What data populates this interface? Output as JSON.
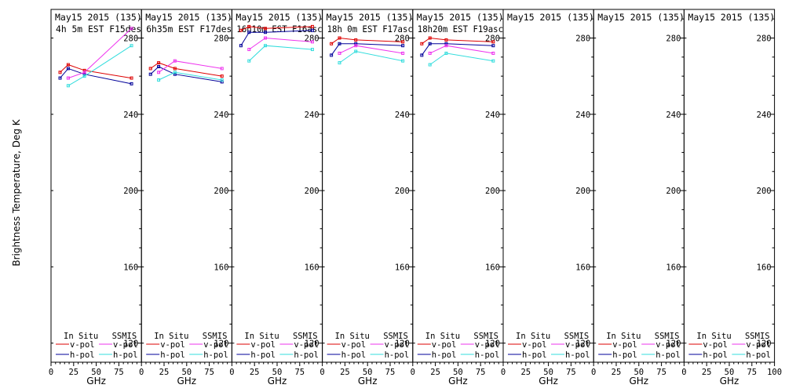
{
  "figure": {
    "ylabel": "Brightness Temperature, Deg K",
    "xlabel": "GHz"
  },
  "legend": {
    "insitu_title": "In Situ",
    "ssmis_title": "SSMIS",
    "vpol": "v-pol",
    "hpol": "h-pol"
  },
  "colors": {
    "insitu_v": "#dd0000",
    "insitu_h": "#000099",
    "ssmis_v": "#ee33ee",
    "ssmis_h": "#33dddd"
  },
  "chart_data": [
    {
      "type": "line",
      "title_line1": "May15 2015 (135)",
      "title_line2": "4h 5m  EST  F15des",
      "xlim": [
        0,
        100
      ],
      "ylim": [
        110,
        295
      ],
      "xticks": [
        0,
        25,
        50,
        75
      ],
      "yticks": [
        120,
        160,
        200,
        240,
        280
      ],
      "series": [
        {
          "name": "In Situ v-pol",
          "key": "insitu_v",
          "x": [
            10,
            19,
            37,
            89
          ],
          "y": [
            262,
            266,
            263,
            259
          ]
        },
        {
          "name": "In Situ h-pol",
          "key": "insitu_h",
          "x": [
            10,
            19,
            37,
            89
          ],
          "y": [
            259,
            264,
            261,
            256
          ]
        },
        {
          "name": "SSMIS v-pol",
          "key": "ssmis_v",
          "x": [
            19,
            37,
            89
          ],
          "y": [
            259,
            262,
            285
          ]
        },
        {
          "name": "SSMIS h-pol",
          "key": "ssmis_h",
          "x": [
            19,
            37,
            89
          ],
          "y": [
            255,
            260,
            276
          ]
        }
      ]
    },
    {
      "type": "line",
      "title_line1": "May15 2015 (135)",
      "title_line2": "6h35m  EST  F17des",
      "xlim": [
        0,
        100
      ],
      "ylim": [
        110,
        295
      ],
      "xticks": [
        0,
        25,
        50,
        75
      ],
      "yticks": [
        120,
        160,
        200,
        240,
        280
      ],
      "series": [
        {
          "name": "In Situ v-pol",
          "key": "insitu_v",
          "x": [
            10,
            19,
            37,
            89
          ],
          "y": [
            264,
            267,
            264,
            260
          ]
        },
        {
          "name": "In Situ h-pol",
          "key": "insitu_h",
          "x": [
            10,
            19,
            37,
            89
          ],
          "y": [
            261,
            265,
            261,
            257
          ]
        },
        {
          "name": "SSMIS v-pol",
          "key": "ssmis_v",
          "x": [
            19,
            37,
            89
          ],
          "y": [
            262,
            268,
            264
          ]
        },
        {
          "name": "SSMIS h-pol",
          "key": "ssmis_h",
          "x": [
            19,
            37,
            89
          ],
          "y": [
            258,
            262,
            258
          ]
        }
      ]
    },
    {
      "type": "line",
      "title_line1": "May15 2015 (135)",
      "title_line2": "16h10m  EST  F16asc",
      "xlim": [
        0,
        100
      ],
      "ylim": [
        110,
        295
      ],
      "xticks": [
        0,
        25,
        50,
        75
      ],
      "yticks": [
        120,
        160,
        200,
        240,
        280
      ],
      "series": [
        {
          "name": "In Situ v-pol",
          "key": "insitu_v",
          "x": [
            10,
            19,
            37,
            89
          ],
          "y": [
            284,
            286,
            285,
            286
          ]
        },
        {
          "name": "In Situ h-pol",
          "key": "insitu_h",
          "x": [
            10,
            19,
            37,
            89
          ],
          "y": [
            276,
            283,
            283,
            284
          ]
        },
        {
          "name": "SSMIS v-pol",
          "key": "ssmis_v",
          "x": [
            19,
            37,
            89
          ],
          "y": [
            274,
            280,
            278
          ]
        },
        {
          "name": "SSMIS h-pol",
          "key": "ssmis_h",
          "x": [
            19,
            37,
            89
          ],
          "y": [
            268,
            276,
            274
          ]
        }
      ]
    },
    {
      "type": "line",
      "title_line1": "May15 2015 (135)",
      "title_line2": "18h 0m  EST  F17asc",
      "xlim": [
        0,
        100
      ],
      "ylim": [
        110,
        295
      ],
      "xticks": [
        0,
        25,
        50,
        75
      ],
      "yticks": [
        120,
        160,
        200,
        240,
        280
      ],
      "series": [
        {
          "name": "In Situ v-pol",
          "key": "insitu_v",
          "x": [
            10,
            19,
            37,
            89
          ],
          "y": [
            277,
            280,
            279,
            278
          ]
        },
        {
          "name": "In Situ h-pol",
          "key": "insitu_h",
          "x": [
            10,
            19,
            37,
            89
          ],
          "y": [
            271,
            277,
            277,
            276
          ]
        },
        {
          "name": "SSMIS v-pol",
          "key": "ssmis_v",
          "x": [
            19,
            37,
            89
          ],
          "y": [
            272,
            276,
            272
          ]
        },
        {
          "name": "SSMIS h-pol",
          "key": "ssmis_h",
          "x": [
            19,
            37,
            89
          ],
          "y": [
            267,
            273,
            268
          ]
        }
      ]
    },
    {
      "type": "line",
      "title_line1": "May15 2015 (135)",
      "title_line2": "18h20m  EST  F19asc",
      "xlim": [
        0,
        100
      ],
      "ylim": [
        110,
        295
      ],
      "xticks": [
        0,
        25,
        50,
        75
      ],
      "yticks": [
        120,
        160,
        200,
        240,
        280
      ],
      "series": [
        {
          "name": "In Situ v-pol",
          "key": "insitu_v",
          "x": [
            10,
            19,
            37,
            89
          ],
          "y": [
            277,
            280,
            279,
            278
          ]
        },
        {
          "name": "In Situ h-pol",
          "key": "insitu_h",
          "x": [
            10,
            19,
            37,
            89
          ],
          "y": [
            271,
            277,
            277,
            276
          ]
        },
        {
          "name": "SSMIS v-pol",
          "key": "ssmis_v",
          "x": [
            19,
            37,
            89
          ],
          "y": [
            272,
            276,
            272
          ]
        },
        {
          "name": "SSMIS h-pol",
          "key": "ssmis_h",
          "x": [
            19,
            37,
            89
          ],
          "y": [
            266,
            272,
            268
          ]
        }
      ]
    },
    {
      "type": "line",
      "title_line1": "May15 2015 (135)",
      "title_line2": "",
      "xlim": [
        0,
        100
      ],
      "ylim": [
        110,
        295
      ],
      "xticks": [
        0,
        25,
        50,
        75
      ],
      "yticks": [
        120,
        160,
        200,
        240,
        280
      ],
      "series": []
    },
    {
      "type": "line",
      "title_line1": "May15 2015 (135)",
      "title_line2": "",
      "xlim": [
        0,
        100
      ],
      "ylim": [
        110,
        295
      ],
      "xticks": [
        0,
        25,
        50,
        75
      ],
      "yticks": [
        120,
        160,
        200,
        240,
        280
      ],
      "series": []
    },
    {
      "type": "line",
      "title_line1": "May15 2015 (135)",
      "title_line2": "",
      "xlim": [
        0,
        100
      ],
      "ylim": [
        110,
        295
      ],
      "xticks": [
        0,
        25,
        50,
        75,
        100
      ],
      "yticks": [
        120,
        160,
        200,
        240,
        280
      ],
      "series": []
    }
  ]
}
